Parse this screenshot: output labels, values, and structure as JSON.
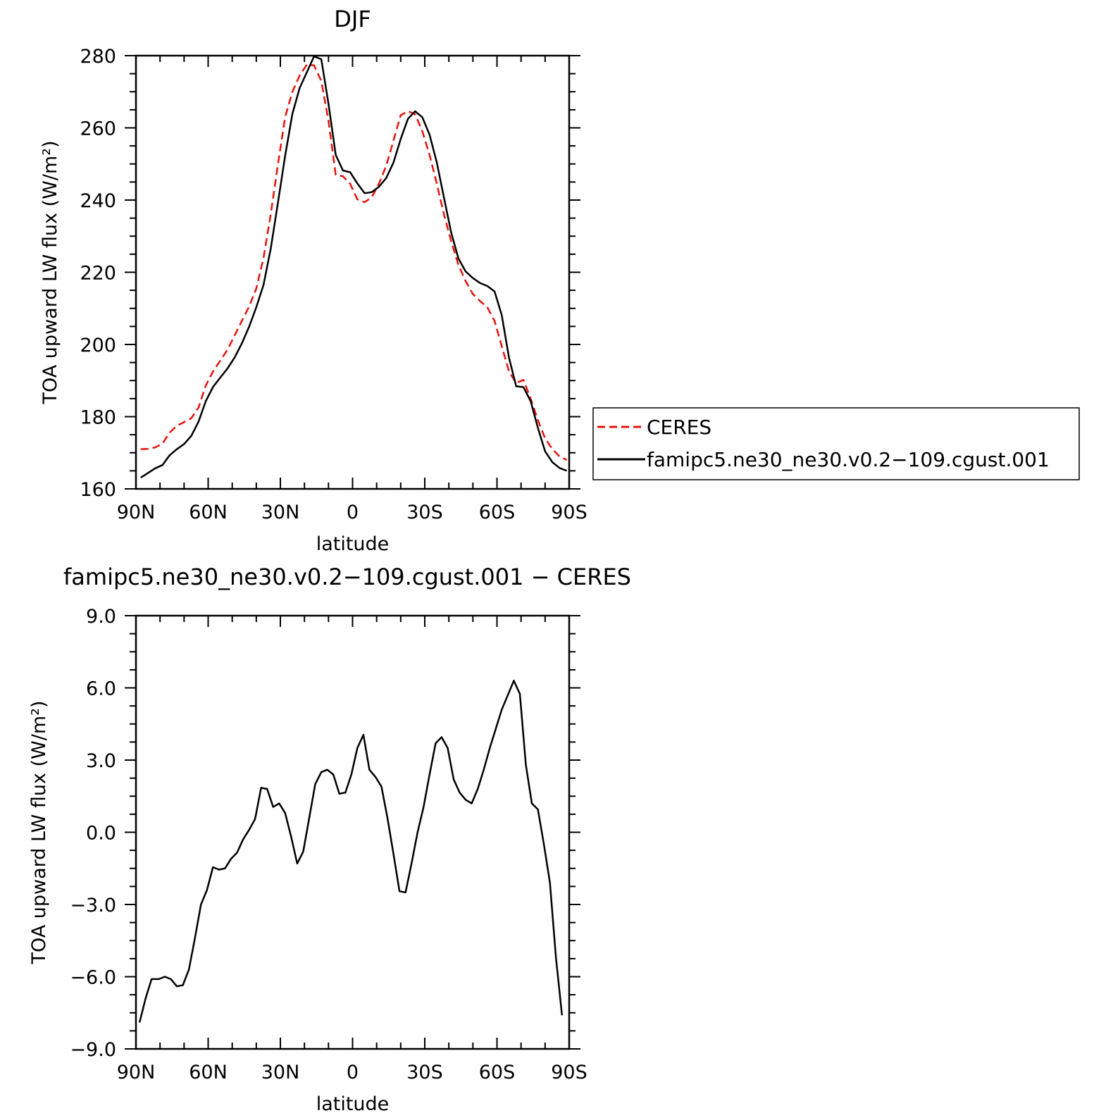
{
  "chart_data": [
    {
      "type": "line",
      "title": "DJF",
      "xlabel": "latitude",
      "ylabel": "TOA upward LW flux (W/m²)",
      "ylim": [
        160,
        280
      ],
      "yticks": [
        "160",
        "180",
        "200",
        "220",
        "240",
        "260",
        "280"
      ],
      "xlim": [
        90,
        -90
      ],
      "xticks": [
        {
          "value": 90,
          "label": "90N"
        },
        {
          "value": 60,
          "label": "60N"
        },
        {
          "value": 30,
          "label": "30N"
        },
        {
          "value": 0,
          "label": "0"
        },
        {
          "value": -30,
          "label": "30S"
        },
        {
          "value": -60,
          "label": "60S"
        },
        {
          "value": -90,
          "label": "90S"
        }
      ],
      "legend_position": "right",
      "series": [
        {
          "name": "CERES",
          "color": "#e8120c",
          "dash": "dashed",
          "x": [
            88,
            85,
            82,
            79,
            76,
            73,
            70,
            67,
            64,
            61,
            58,
            55,
            52,
            49,
            46,
            43,
            40,
            37,
            34,
            31,
            28,
            25,
            22,
            19,
            16,
            13,
            10,
            7,
            4,
            1,
            -2,
            -5,
            -8,
            -11,
            -14,
            -17,
            -20,
            -23,
            -26,
            -29,
            -32,
            -35,
            -38,
            -41,
            -44,
            -47,
            -50,
            -53,
            -56,
            -59,
            -62,
            -65,
            -68,
            -71,
            -74,
            -77,
            -80,
            -83,
            -86,
            -89
          ],
          "values": [
            171.0,
            171.1,
            171.5,
            172.5,
            175.6,
            177.5,
            178.5,
            179.6,
            182.5,
            188.6,
            192.5,
            195.5,
            198.5,
            202.5,
            206.5,
            210.5,
            215.5,
            224.0,
            236.0,
            250.0,
            263.0,
            270.0,
            274.5,
            277.5,
            277.3,
            273.0,
            262.0,
            247.0,
            246.6,
            244.5,
            240.2,
            239.4,
            240.8,
            244.6,
            249.5,
            256.5,
            263.5,
            264.6,
            263.8,
            259.0,
            252.5,
            244.5,
            236.0,
            228.5,
            222.0,
            217.5,
            214.0,
            212.0,
            210.3,
            206.5,
            199.5,
            192.5,
            189.3,
            190.2,
            185.0,
            179.0,
            174.0,
            171.0,
            169.0,
            168.0
          ]
        },
        {
          "name": "famipc5.ne30_ne30.v0.2−109.cgust.001",
          "color": "#000000",
          "dash": "solid",
          "x": [
            88,
            85,
            82,
            79,
            76,
            73,
            70,
            67,
            64,
            61,
            58,
            55,
            52,
            49,
            46,
            43,
            40,
            37,
            34,
            31,
            28,
            25,
            22,
            19,
            16,
            13,
            10,
            7,
            4,
            1,
            -2,
            -5,
            -8,
            -11,
            -14,
            -17,
            -20,
            -23,
            -26,
            -29,
            -32,
            -35,
            -38,
            -41,
            -44,
            -47,
            -50,
            -53,
            -56,
            -59,
            -62,
            -65,
            -68,
            -71,
            -74,
            -77,
            -80,
            -83,
            -86,
            -89
          ],
          "values": [
            163.1,
            164.4,
            165.7,
            166.6,
            169.3,
            171.0,
            172.4,
            174.7,
            178.6,
            184.3,
            188.2,
            190.8,
            193.3,
            196.4,
            200.3,
            204.9,
            210.3,
            216.5,
            226.5,
            239.3,
            252.3,
            263.9,
            271.0,
            275.4,
            279.8,
            279.0,
            266.7,
            252.5,
            248.2,
            247.7,
            244.6,
            241.9,
            242.2,
            243.7,
            246.1,
            250.4,
            256.9,
            262.5,
            264.6,
            262.9,
            258.1,
            250.4,
            240.6,
            230.9,
            223.8,
            220.2,
            218.4,
            217.0,
            216.2,
            214.7,
            208.1,
            196.3,
            188.4,
            188.2,
            184.3,
            176.9,
            170.4,
            167.4,
            165.8,
            165.0
          ]
        }
      ]
    },
    {
      "type": "line",
      "title": "famipc5.ne30_ne30.v0.2−109.cgust.001  −  CERES",
      "xlabel": "latitude",
      "ylabel": "TOA upward LW flux (W/m²)",
      "ylim": [
        -9,
        9
      ],
      "yticks": [
        "−9.0",
        "−6.0",
        "−3.0",
        "0.0",
        "3.0",
        "6.0",
        "9.0"
      ],
      "xlim": [
        90,
        -90
      ],
      "xticks": [
        {
          "value": 90,
          "label": "90N"
        },
        {
          "value": 60,
          "label": "60N"
        },
        {
          "value": 30,
          "label": "30N"
        },
        {
          "value": 0,
          "label": "0"
        },
        {
          "value": -30,
          "label": "30S"
        },
        {
          "value": -60,
          "label": "60S"
        },
        {
          "value": -90,
          "label": "90S"
        }
      ],
      "series": [
        {
          "color": "#000000",
          "dash": "solid",
          "x": [
            88.5,
            86,
            83.5,
            80.5,
            78,
            75.5,
            73,
            70.5,
            68,
            65.5,
            63,
            60.5,
            58,
            55.5,
            53,
            50.5,
            48,
            45.5,
            43,
            40.5,
            38,
            35.5,
            33,
            30.5,
            28,
            25.5,
            23,
            20.5,
            18,
            15.5,
            13,
            10.5,
            8,
            5.5,
            3,
            0.5,
            -2,
            -4.5,
            -7,
            -9.5,
            -12,
            -14.5,
            -17,
            -19.5,
            -22,
            -24.5,
            -27,
            -29.5,
            -32,
            -34.5,
            -37,
            -39.5,
            -42,
            -44.5,
            -47,
            -49.5,
            -52,
            -54.5,
            -57,
            -59.5,
            -62,
            -64.5,
            -67,
            -69.5,
            -72,
            -74.5,
            -77,
            -79.5,
            -82,
            -84.5,
            -87
          ],
          "values": [
            -7.9,
            -6.9,
            -6.1,
            -6.1,
            -6.0,
            -6.1,
            -6.4,
            -6.35,
            -5.7,
            -4.4,
            -3.0,
            -2.4,
            -1.45,
            -1.55,
            -1.5,
            -1.1,
            -0.85,
            -0.3,
            0.1,
            0.55,
            1.85,
            1.8,
            1.05,
            1.2,
            0.8,
            -0.2,
            -1.3,
            -0.8,
            0.6,
            2.0,
            2.5,
            2.6,
            2.4,
            1.6,
            1.65,
            2.4,
            3.5,
            4.05,
            2.6,
            2.3,
            1.9,
            0.6,
            -0.9,
            -2.45,
            -2.5,
            -1.3,
            0.0,
            1.05,
            2.4,
            3.7,
            3.95,
            3.5,
            2.2,
            1.65,
            1.35,
            1.2,
            1.8,
            2.6,
            3.5,
            4.3,
            5.1,
            5.7,
            6.3,
            5.75,
            2.8,
            1.2,
            0.95,
            -0.5,
            -2.1,
            -5.2,
            -7.6
          ]
        }
      ]
    }
  ]
}
